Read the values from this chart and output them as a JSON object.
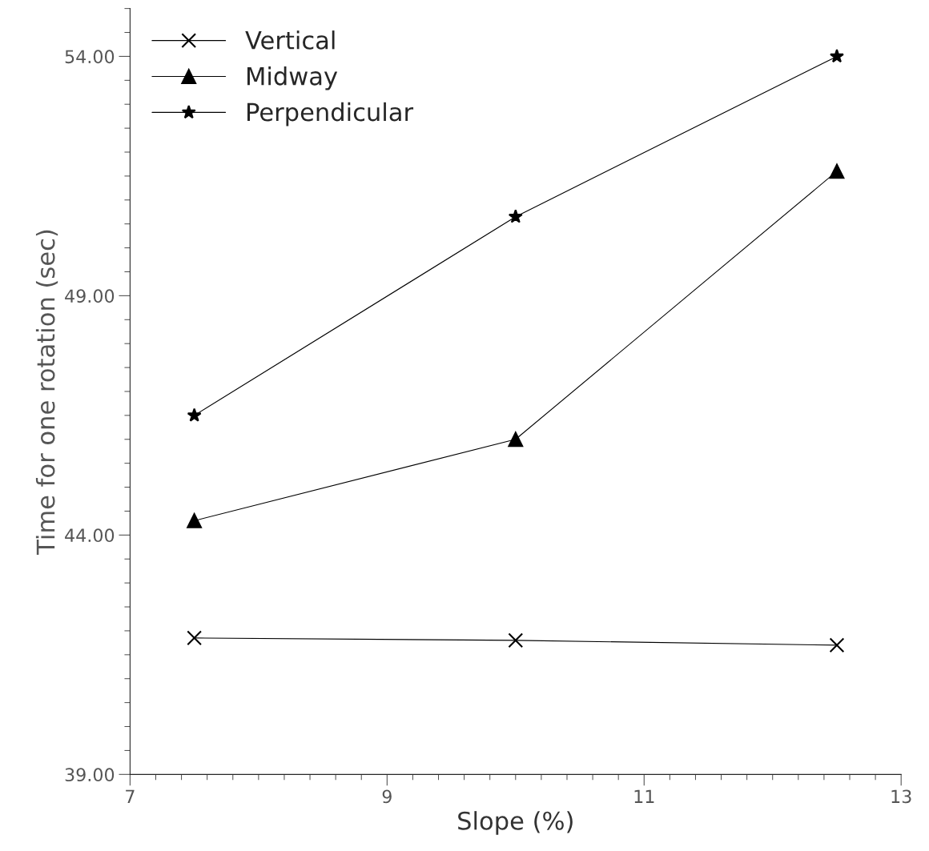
{
  "chart_data": {
    "type": "line",
    "xlabel": "Slope (%)",
    "ylabel": "Time for one rotation (sec)",
    "x": [
      7.5,
      10,
      12.5
    ],
    "series": [
      {
        "name": "Vertical",
        "color": "#000000",
        "marker": "cross",
        "values": [
          41.85,
          41.8,
          41.7
        ]
      },
      {
        "name": "Midway",
        "color": "#000000",
        "marker": "triangle",
        "values": [
          44.3,
          46.0,
          51.6
        ]
      },
      {
        "name": "Perpendicular",
        "color": "#000000",
        "marker": "star",
        "values": [
          46.5,
          50.65,
          54.0
        ]
      }
    ],
    "xlim": [
      7,
      13
    ],
    "xticks": [
      7,
      9,
      11,
      13
    ],
    "ylim": [
      39,
      55
    ],
    "yticks": [
      {
        "value": 39,
        "label": "39.00"
      },
      {
        "value": 44,
        "label": "44.00"
      },
      {
        "value": 49,
        "label": "49.00"
      },
      {
        "value": 54,
        "label": "54.00"
      }
    ],
    "legend": "top left",
    "grid": false,
    "line_style": "solid"
  }
}
